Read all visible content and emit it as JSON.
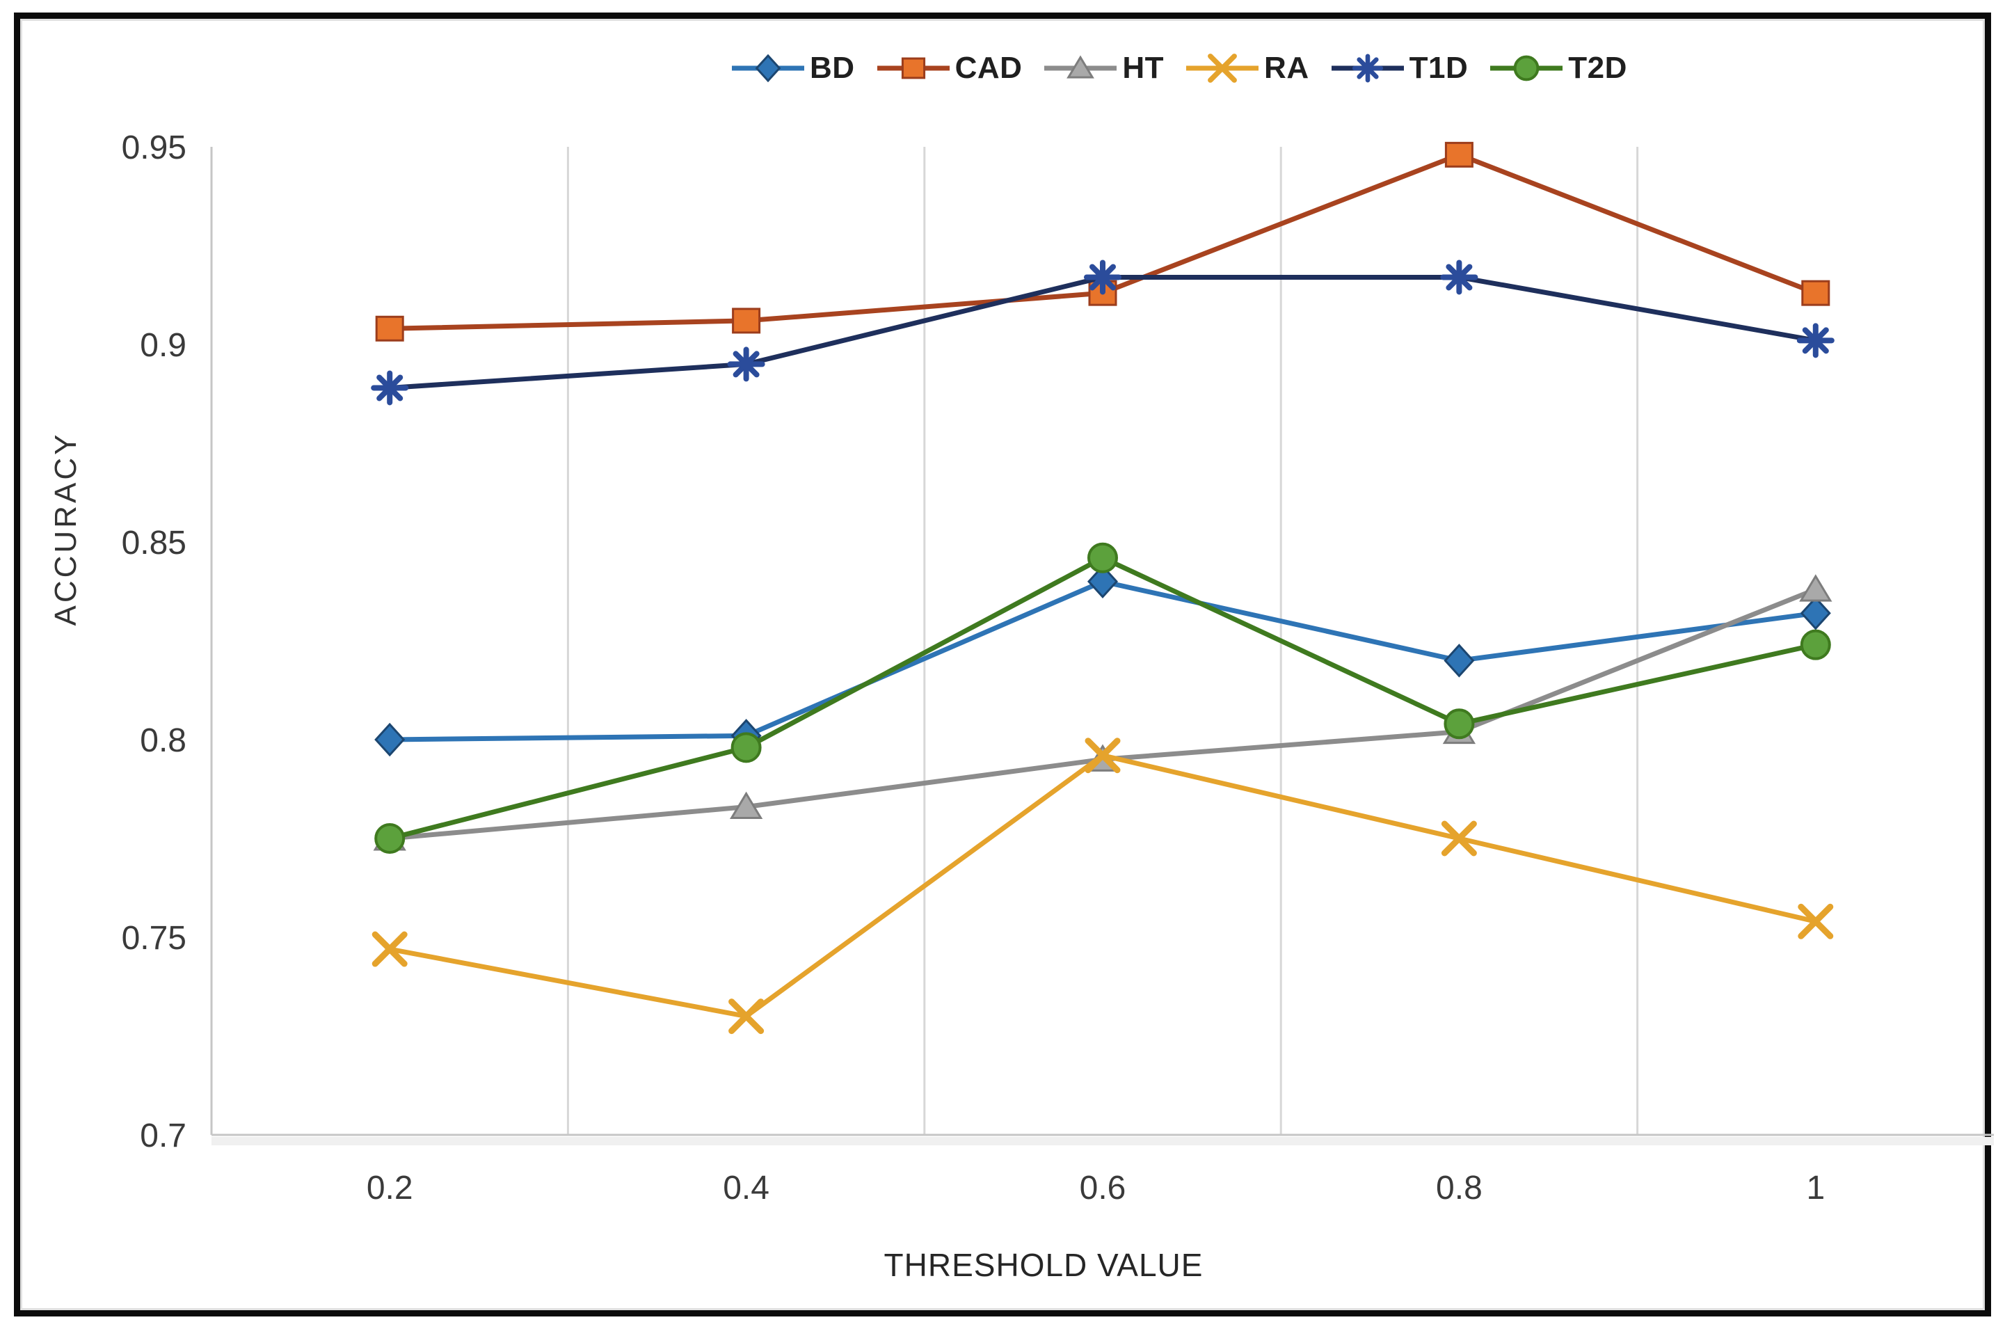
{
  "figure": {
    "background": "#ffffff",
    "border_color": "#0b0b0b"
  },
  "chart_data": {
    "type": "line",
    "title": "",
    "xlabel": "THRESHOLD VALUE",
    "ylabel": "ACCURACY",
    "categories": [
      "0.2",
      "0.4",
      "0.6",
      "0.8",
      "1"
    ],
    "ylim": [
      0.7,
      0.95
    ],
    "yticks": [
      {
        "label": "0.95",
        "value": 0.95
      },
      {
        "label": "0.9",
        "value": 0.9
      },
      {
        "label": "0.85",
        "value": 0.85
      },
      {
        "label": "0.8",
        "value": 0.8
      },
      {
        "label": "0.75",
        "value": 0.75
      },
      {
        "label": "0.7",
        "value": 0.7
      }
    ],
    "grid": "vertical gridlines at category boundaries only",
    "legend_position": "top-center",
    "axis_color": "#c6c6c6",
    "gridline_color": "#d7d7d7",
    "tick_label_color": "#3a3a3a",
    "series": [
      {
        "name": "BD",
        "marker": "diamond",
        "line_color": "#2E74B5",
        "marker_color": "#2E74B5",
        "marker_stroke": "#1C4670",
        "values": [
          0.8,
          0.801,
          0.84,
          0.82,
          0.832
        ]
      },
      {
        "name": "CAD",
        "marker": "square",
        "line_color": "#A8431F",
        "marker_color": "#E8742B",
        "marker_stroke": "#9C3D1C",
        "values": [
          0.904,
          0.906,
          0.913,
          0.948,
          0.913
        ]
      },
      {
        "name": "HT",
        "marker": "triangle",
        "line_color": "#8C8C8C",
        "marker_color": "#A9A9A9",
        "marker_stroke": "#7D7D7D",
        "values": [
          0.775,
          0.783,
          0.795,
          0.802,
          0.838
        ]
      },
      {
        "name": "RA",
        "marker": "x",
        "line_color": "#E5A32C",
        "marker_color": "#E5A32C",
        "marker_stroke": "#E5A32C",
        "values": [
          0.747,
          0.73,
          0.796,
          0.775,
          0.754
        ]
      },
      {
        "name": "T1D",
        "marker": "asterisk",
        "line_color": "#1E2F5C",
        "marker_color": "#2B4C9B",
        "marker_stroke": "#2B4C9B",
        "values": [
          0.889,
          0.895,
          0.917,
          0.917,
          0.901
        ]
      },
      {
        "name": "T2D",
        "marker": "circle",
        "line_color": "#3F7A1F",
        "marker_color": "#5CA13C",
        "marker_stroke": "#3F7A1F",
        "values": [
          0.775,
          0.798,
          0.846,
          0.804,
          0.824
        ]
      }
    ]
  }
}
